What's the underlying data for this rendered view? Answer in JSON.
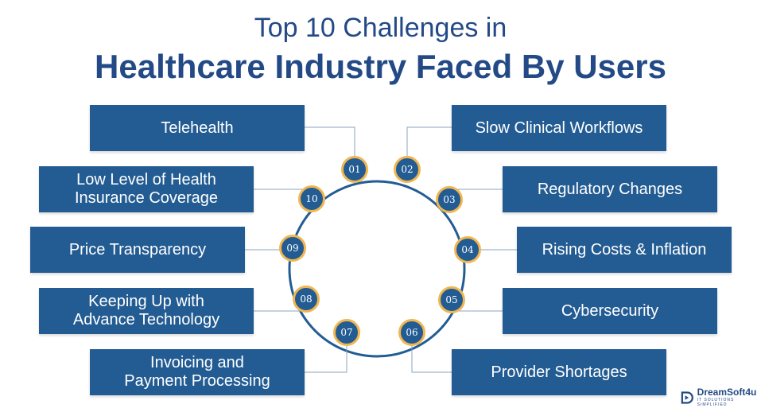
{
  "title": {
    "line1": "Top 10 Challenges in",
    "line2": "Healthcare Industry Faced By Users"
  },
  "challenges": [
    {
      "num": "01",
      "label": "Telehealth"
    },
    {
      "num": "02",
      "label": "Slow Clinical Workflows"
    },
    {
      "num": "03",
      "label": "Regulatory Changes"
    },
    {
      "num": "04",
      "label": "Rising Costs & Inflation"
    },
    {
      "num": "05",
      "label": "Cybersecurity"
    },
    {
      "num": "06",
      "label": "Provider Shortages"
    },
    {
      "num": "07",
      "label": "Invoicing and\nPayment Processing"
    },
    {
      "num": "08",
      "label": "Keeping Up with\nAdvance Technology"
    },
    {
      "num": "09",
      "label": "Price Transparency"
    },
    {
      "num": "10",
      "label": "Low Level of Health\nInsurance Coverage"
    }
  ],
  "colors": {
    "primary": "#235c93",
    "title": "#234a86",
    "accent": "#f1b64f"
  },
  "logo": {
    "name": "DreamSoft4u",
    "tagline": "IT SOLUTIONS SIMPLIFIED",
    "icon": "dreamsoft-logo-icon"
  }
}
